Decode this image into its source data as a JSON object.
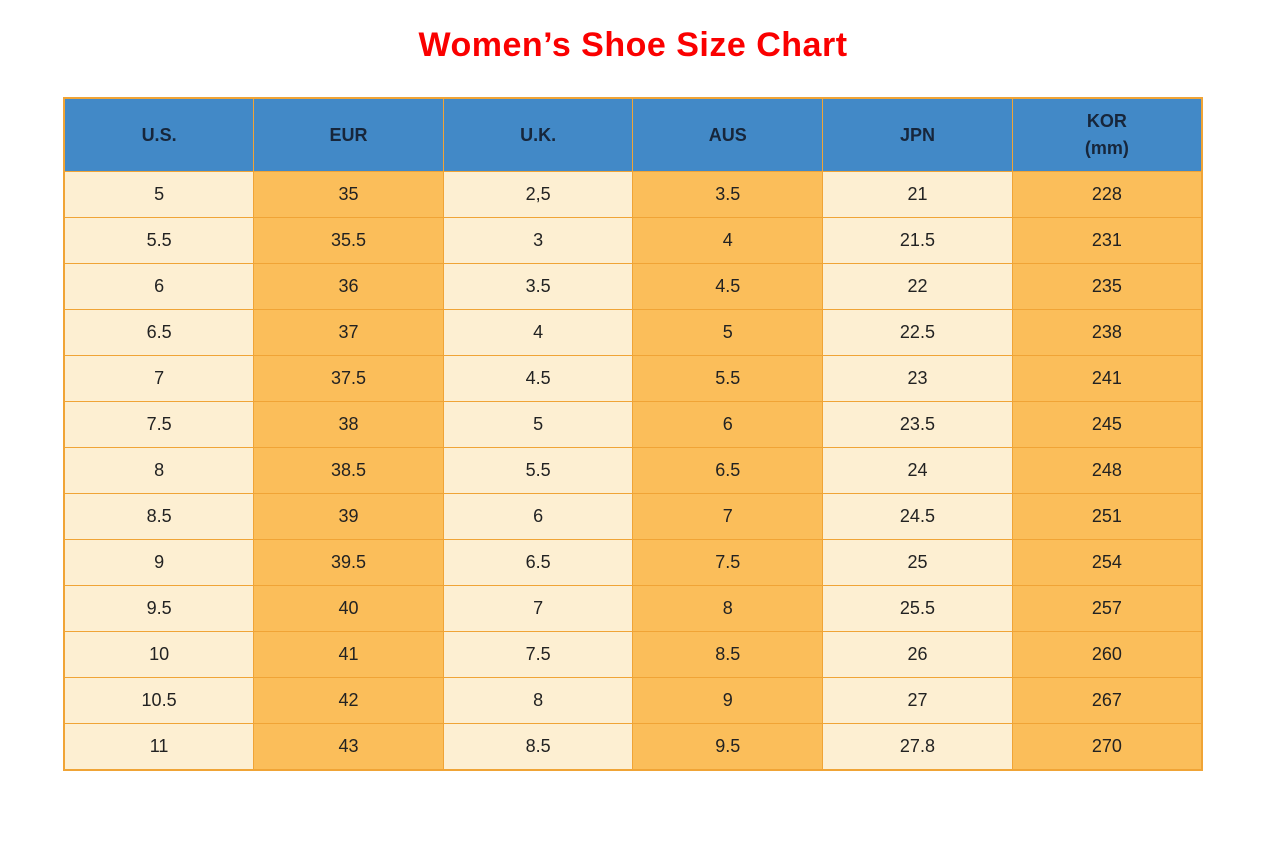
{
  "page_title": "Women’s Shoe Size Chart",
  "colors": {
    "header_bg": "#4289C7",
    "header_text": "#17263B",
    "row_light": "#FDEFD2",
    "row_orange": "#FBBE5A",
    "border": "#F0A436",
    "cell_text": "#222222",
    "title": "#FA0000"
  },
  "table": {
    "columns": [
      {
        "key": "us",
        "label": "U.S.",
        "sublabel": ""
      },
      {
        "key": "eur",
        "label": "EUR",
        "sublabel": ""
      },
      {
        "key": "uk",
        "label": "U.K.",
        "sublabel": ""
      },
      {
        "key": "aus",
        "label": "AUS",
        "sublabel": ""
      },
      {
        "key": "jpn",
        "label": "JPN",
        "sublabel": ""
      },
      {
        "key": "kor",
        "label": "KOR",
        "sublabel": "(mm)"
      }
    ]
  },
  "chart_data": {
    "type": "table",
    "title": "Women’s Shoe Size Chart",
    "columns": [
      "U.S.",
      "EUR",
      "U.K.",
      "AUS",
      "JPN",
      "KOR (mm)"
    ],
    "rows": [
      [
        "5",
        "35",
        "2,5",
        "3.5",
        "21",
        "228"
      ],
      [
        "5.5",
        "35.5",
        "3",
        "4",
        "21.5",
        "231"
      ],
      [
        "6",
        "36",
        "3.5",
        "4.5",
        "22",
        "235"
      ],
      [
        "6.5",
        "37",
        "4",
        "5",
        "22.5",
        "238"
      ],
      [
        "7",
        "37.5",
        "4.5",
        "5.5",
        "23",
        "241"
      ],
      [
        "7.5",
        "38",
        "5",
        "6",
        "23.5",
        "245"
      ],
      [
        "8",
        "38.5",
        "5.5",
        "6.5",
        "24",
        "248"
      ],
      [
        "8.5",
        "39",
        "6",
        "7",
        "24.5",
        "251"
      ],
      [
        "9",
        "39.5",
        "6.5",
        "7.5",
        "25",
        "254"
      ],
      [
        "9.5",
        "40",
        "7",
        "8",
        "25.5",
        "257"
      ],
      [
        "10",
        "41",
        "7.5",
        "8.5",
        "26",
        "260"
      ],
      [
        "10.5",
        "42",
        "8",
        "9",
        "27",
        "267"
      ],
      [
        "11",
        "43",
        "8.5",
        "9.5",
        "27.8",
        "270"
      ]
    ]
  }
}
